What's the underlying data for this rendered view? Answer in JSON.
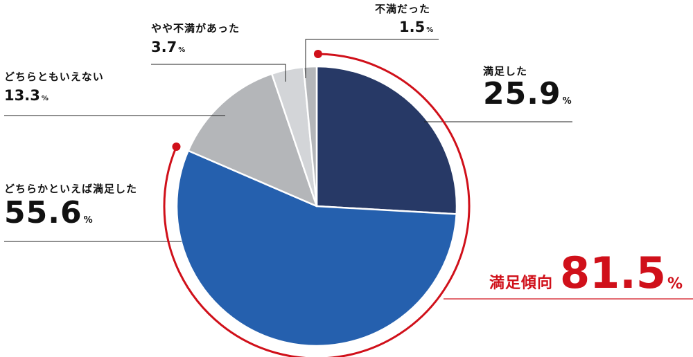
{
  "chart_data": {
    "type": "pie",
    "categories": [
      "満足した",
      "どちらかといえば満足した",
      "どちらともいえない",
      "やや不満があった",
      "不満だった"
    ],
    "values": [
      25.9,
      55.6,
      13.3,
      3.7,
      1.5
    ],
    "unit": "%",
    "colors": [
      "#273966",
      "#2560ae",
      "#b4b6b9",
      "#d3d5d8",
      "#b4b6b9"
    ],
    "labels": [
      {
        "name": "満足した",
        "value": "25.9",
        "unit": "%"
      },
      {
        "name": "どちらかといえば満足した",
        "value": "55.6",
        "unit": "%"
      },
      {
        "name": "どちらともいえない",
        "value": "13.3",
        "unit": "%"
      },
      {
        "name": "やや不満があった",
        "value": "3.7",
        "unit": "%"
      },
      {
        "name": "不満だった",
        "value": "1.5",
        "unit": "%"
      }
    ],
    "summary": {
      "label": "満足傾向",
      "value": "81.5",
      "unit": "%",
      "color": "#d0101a"
    }
  }
}
